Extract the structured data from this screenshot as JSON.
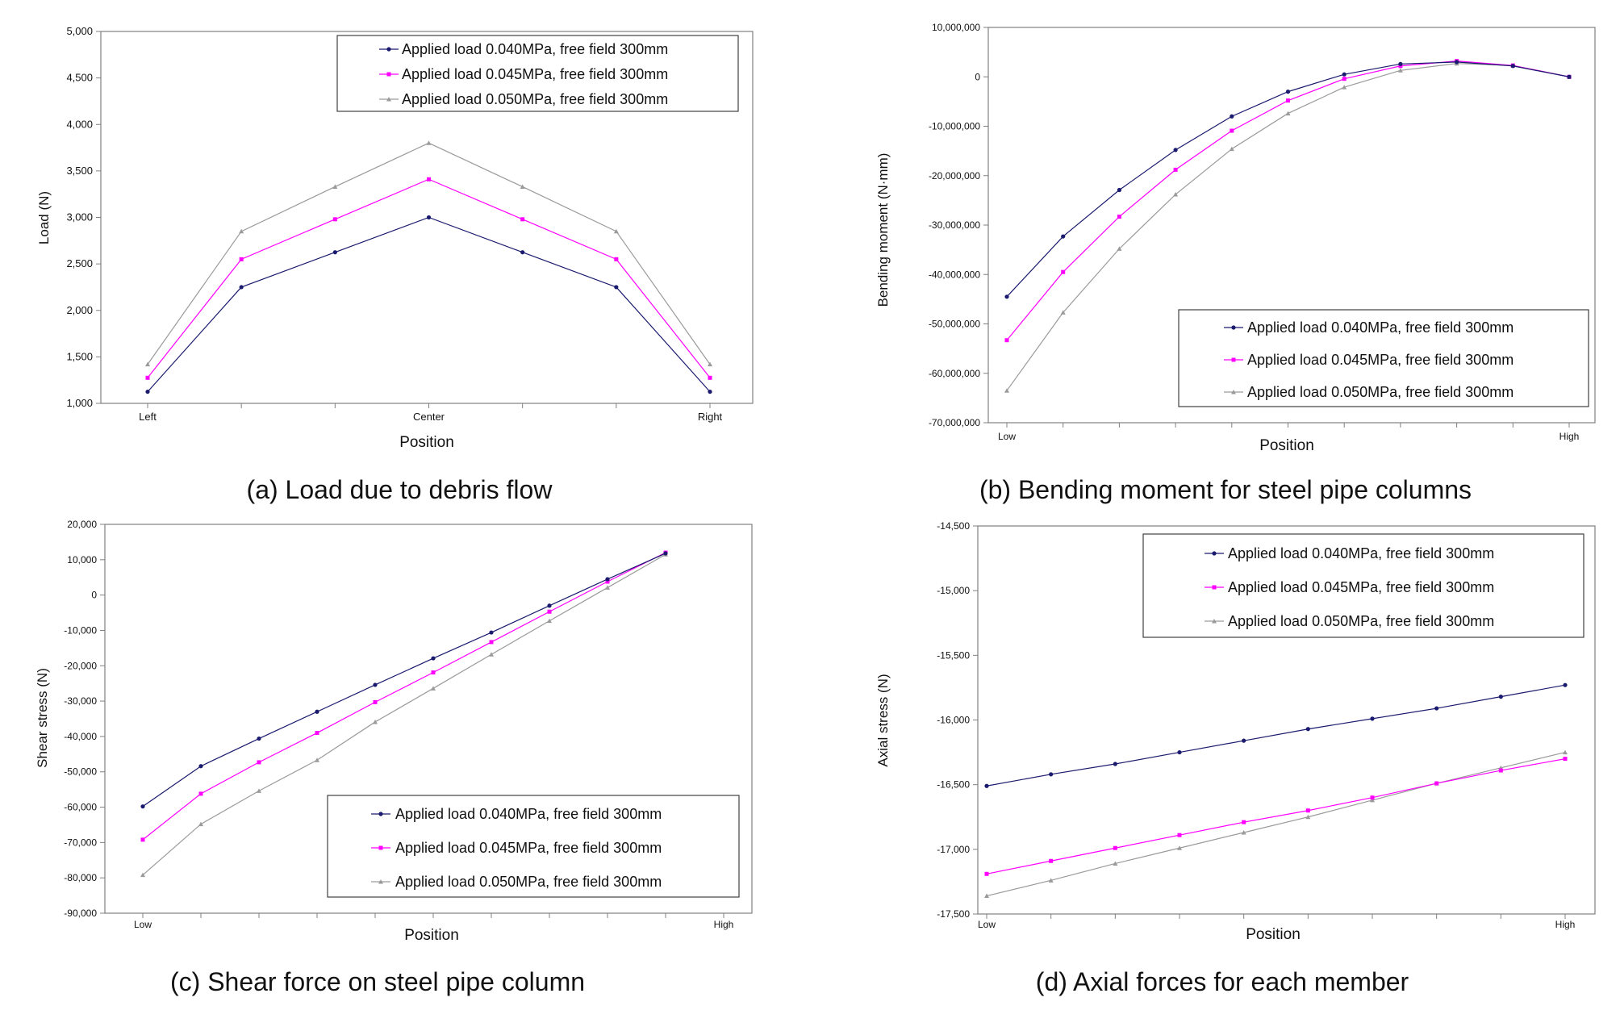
{
  "colors": {
    "s1": "#1a1a6e",
    "s2": "#ff00ff",
    "s3": "#9a9a9a",
    "axis": "#808080",
    "text": "#111111"
  },
  "chart_data": [
    {
      "type": "line",
      "caption": "(a) Load due to debris flow",
      "xlabel": "Position",
      "ylabel": "Load (N)",
      "ylim": [
        1000,
        5000
      ],
      "yticks": [
        1000,
        1500,
        2000,
        2500,
        3000,
        3500,
        4000,
        4500,
        5000
      ],
      "ytick_labels": [
        "1,000",
        "1,500",
        "2,000",
        "2,500",
        "3,000",
        "3,500",
        "4,000",
        "4,500",
        "5,000"
      ],
      "xtick_labels": [
        {
          "i": 0,
          "label": "Left"
        },
        {
          "i": 3,
          "label": "Center"
        },
        {
          "i": 6,
          "label": "Right"
        }
      ],
      "n_points": 7,
      "legend_position": "top-right",
      "series": [
        {
          "name": "Applied load 0.040MPa, free field 300mm",
          "values": [
            1125,
            2250,
            2625,
            3000,
            2625,
            2250,
            1125
          ]
        },
        {
          "name": "Applied load 0.045MPa, free field 300mm",
          "values": [
            1275,
            2550,
            2980,
            3410,
            2980,
            2550,
            1275
          ]
        },
        {
          "name": "Applied load 0.050MPa, free field 300mm",
          "values": [
            1420,
            2850,
            3330,
            3800,
            3330,
            2850,
            1420
          ]
        }
      ]
    },
    {
      "type": "line",
      "caption": "(b) Bending moment for steel pipe columns",
      "xlabel": "Position",
      "ylabel": "Bending moment (N·mm)",
      "ylim": [
        -70000000,
        10000000
      ],
      "yticks": [
        -70000000,
        -60000000,
        -50000000,
        -40000000,
        -30000000,
        -20000000,
        -10000000,
        0,
        10000000
      ],
      "ytick_labels": [
        "-70,000,000",
        "-60,000,000",
        "-50,000,000",
        "-40,000,000",
        "-30,000,000",
        "-20,000,000",
        "-10,000,000",
        "0",
        "10,000,000"
      ],
      "xtick_labels": [
        {
          "i": 0,
          "label": "Low"
        },
        {
          "i": 10,
          "label": "High"
        }
      ],
      "n_points": 11,
      "legend_position": "bottom-right",
      "series": [
        {
          "name": "Applied load 0.040MPa, free field 300mm",
          "values": [
            -44500000,
            -32300000,
            -22900000,
            -14800000,
            -8000000,
            -3000000,
            500000,
            2600000,
            3000000,
            2200000,
            0
          ]
        },
        {
          "name": "Applied load 0.045MPa, free field 300mm",
          "values": [
            -53300000,
            -39500000,
            -28300000,
            -18800000,
            -10900000,
            -4800000,
            -400000,
            2200000,
            3200000,
            2300000,
            0
          ]
        },
        {
          "name": "Applied load 0.050MPa, free field 300mm",
          "values": [
            -63500000,
            -47700000,
            -34800000,
            -23800000,
            -14600000,
            -7400000,
            -2100000,
            1300000,
            2700000,
            2300000,
            0
          ]
        }
      ]
    },
    {
      "type": "line",
      "caption": "(c) Shear force on steel pipe column",
      "xlabel": "Position",
      "ylabel": "Shear stress (N)",
      "ylim": [
        -90000,
        20000
      ],
      "yticks": [
        -90000,
        -80000,
        -70000,
        -60000,
        -50000,
        -40000,
        -30000,
        -20000,
        -10000,
        0,
        10000,
        20000
      ],
      "ytick_labels": [
        "-90,000",
        "-80,000",
        "-70,000",
        "-60,000",
        "-50,000",
        "-40,000",
        "-30,000",
        "-20,000",
        "-10,000",
        "0",
        "10,000",
        "20,000"
      ],
      "xtick_labels": [
        {
          "i": 0,
          "label": "Low"
        },
        {
          "i": 10,
          "label": "High"
        }
      ],
      "n_points": 11,
      "legend_position": "bottom-right",
      "series": [
        {
          "name": "Applied load 0.040MPa, free field 300mm",
          "values": [
            -59800,
            -48400,
            -40600,
            -33000,
            -25400,
            -17900,
            -10600,
            -3000,
            4500,
            11800,
            null
          ]
        },
        {
          "name": "Applied load 0.045MPa, free field 300mm",
          "values": [
            -69200,
            -56200,
            -47300,
            -39000,
            -30300,
            -21900,
            -13300,
            -4700,
            3800,
            12000,
            null
          ]
        },
        {
          "name": "Applied load 0.050MPa, free field 300mm",
          "values": [
            -79200,
            -64800,
            -55400,
            -46700,
            -35900,
            -26400,
            -16800,
            -7300,
            2100,
            11500,
            null
          ]
        }
      ]
    },
    {
      "type": "line",
      "caption": "(d) Axial forces for each member",
      "xlabel": "Position",
      "ylabel": "Axial stress (N)",
      "ylim": [
        -17500,
        -14500
      ],
      "yticks": [
        -17500,
        -17000,
        -16500,
        -16000,
        -15500,
        -15000,
        -14500
      ],
      "ytick_labels": [
        "-17,500",
        "-17,000",
        "-16,500",
        "-16,000",
        "-15,500",
        "-15,000",
        "-14,500"
      ],
      "xtick_labels": [
        {
          "i": 0,
          "label": "Low"
        },
        {
          "i": 9,
          "label": "High"
        }
      ],
      "n_points": 10,
      "legend_position": "top-right",
      "series": [
        {
          "name": "Applied load 0.040MPa, free field 300mm",
          "values": [
            -16510,
            -16420,
            -16340,
            -16250,
            -16160,
            -16070,
            -15990,
            -15910,
            -15820,
            -15730
          ]
        },
        {
          "name": "Applied load 0.045MPa, free field 300mm",
          "values": [
            -17190,
            -17090,
            -16990,
            -16890,
            -16790,
            -16700,
            -16600,
            -16490,
            -16390,
            -16300
          ]
        },
        {
          "name": "Applied load 0.050MPa, free field 300mm",
          "values": [
            -17360,
            -17240,
            -17110,
            -16990,
            -16870,
            -16750,
            -16620,
            -16490,
            -16370,
            -16250
          ]
        }
      ]
    }
  ]
}
